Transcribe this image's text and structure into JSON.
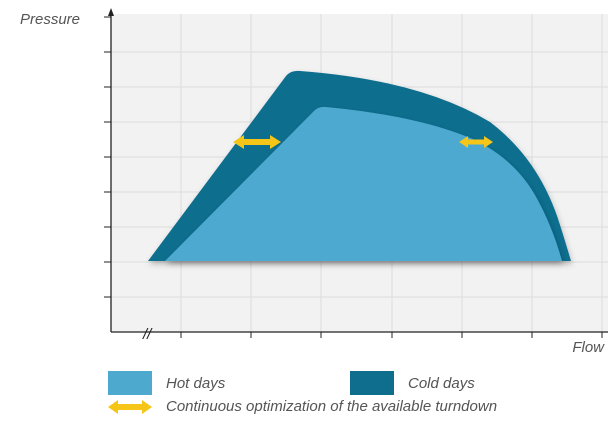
{
  "axes": {
    "y_label": "Pressure",
    "x_label": "Flow",
    "break_mark": "//"
  },
  "legend": {
    "hot_label": "Hot days",
    "cold_label": "Cold days",
    "arrow_label": "Continuous optimization of the available turndown"
  },
  "colors": {
    "hot": "#4ea9cf",
    "cold": "#0f6e8e",
    "arrow": "#f5c518",
    "plot_bg": "#f2f2f2",
    "grid": "#dcdcdc",
    "axis": "#222222",
    "text": "#555555"
  },
  "icons": {
    "arrow": "double-headed-arrow-icon"
  }
}
